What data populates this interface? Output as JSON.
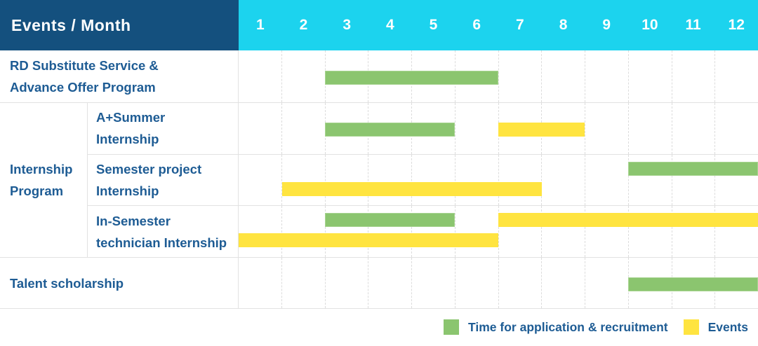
{
  "header": {
    "label": "Events / Month",
    "months": [
      "1",
      "2",
      "3",
      "4",
      "5",
      "6",
      "7",
      "8",
      "9",
      "10",
      "11",
      "12"
    ]
  },
  "labels": {
    "row1": [
      "RD Substitute Service &",
      "Advance Offer Program"
    ],
    "group": [
      "Internship",
      "Program"
    ],
    "row2": [
      "A+Summer",
      "Internship"
    ],
    "row3": [
      "Semester project",
      "Internship"
    ],
    "row4": [
      "In-Semester",
      "technician Internship"
    ],
    "row5": [
      "Talent scholarship"
    ]
  },
  "colors": {
    "header_bg": "#14507E",
    "months_bg": "#1CD3EE",
    "application": "#8BC56F",
    "application_border": "#A8D491",
    "event": "#FFE440",
    "label_text": "#1E5C94",
    "grid_line": "#E2E2E2"
  },
  "chart_data": {
    "type": "bar",
    "subtype": "gantt-schedule",
    "title": "Events / Month",
    "x_axis": {
      "label": "Month",
      "ticks": [
        1,
        2,
        3,
        4,
        5,
        6,
        7,
        8,
        9,
        10,
        11,
        12
      ],
      "range": [
        1,
        12
      ]
    },
    "grid": "dashed-vertical-month-lines",
    "legend_position": "bottom-right",
    "rows": [
      {
        "group": null,
        "label": "RD Substitute Service & Advance Offer Program",
        "bars": [
          {
            "series": "Time for application & recruitment",
            "start_month": 3,
            "end_month": 6,
            "track": "middle"
          }
        ]
      },
      {
        "group": "Internship Program",
        "label": "A+Summer Internship",
        "bars": [
          {
            "series": "Time for application & recruitment",
            "start_month": 3,
            "end_month": 5,
            "track": "middle"
          },
          {
            "series": "Events",
            "start_month": 7,
            "end_month": 8,
            "track": "middle"
          }
        ]
      },
      {
        "group": "Internship Program",
        "label": "Semester project Internship",
        "bars": [
          {
            "series": "Time for application & recruitment",
            "start_month": 10,
            "end_month": 12,
            "track": "top"
          },
          {
            "series": "Events",
            "start_month": 2,
            "end_month": 7,
            "track": "bottom"
          }
        ]
      },
      {
        "group": "Internship Program",
        "label": "In-Semester technician Internship",
        "bars": [
          {
            "series": "Time for application & recruitment",
            "start_month": 3,
            "end_month": 5,
            "track": "top"
          },
          {
            "series": "Events",
            "start_month": 7,
            "end_month": 12,
            "track": "top"
          },
          {
            "series": "Events",
            "start_month": 1,
            "end_month": 6,
            "track": "bottom"
          }
        ]
      },
      {
        "group": null,
        "label": "Talent scholarship",
        "bars": [
          {
            "series": "Time for application & recruitment",
            "start_month": 10,
            "end_month": 12,
            "track": "middle"
          }
        ]
      }
    ],
    "legend": [
      {
        "label": "Time for application & recruitment",
        "color": "#8BC56F"
      },
      {
        "label": "Events",
        "color": "#FFE440"
      }
    ]
  }
}
